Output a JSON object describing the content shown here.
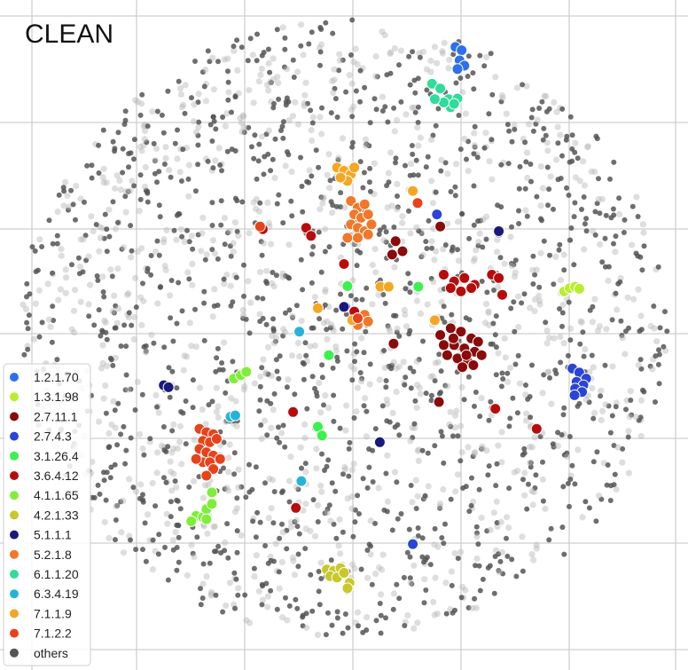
{
  "chart_data": {
    "type": "scatter",
    "title": "CLEAN",
    "xlabel": "",
    "ylabel": "",
    "grid": true,
    "legend_position": "bottom-left",
    "series": [
      {
        "name": "1.2.1.70",
        "color": "#2f6fe8",
        "points": [
          [
            0.662,
            0.07
          ],
          [
            0.671,
            0.075
          ],
          [
            0.668,
            0.09
          ],
          [
            0.675,
            0.098
          ],
          [
            0.665,
            0.103
          ]
        ]
      },
      {
        "name": "1.3.1.98",
        "color": "#b8ee2e",
        "points": [
          [
            0.82,
            0.435
          ],
          [
            0.828,
            0.43
          ],
          [
            0.836,
            0.428
          ],
          [
            0.842,
            0.431
          ]
        ]
      },
      {
        "name": "2.7.11.1",
        "color": "#8a0b0b",
        "points": [
          [
            0.64,
            0.5
          ],
          [
            0.655,
            0.49
          ],
          [
            0.67,
            0.495
          ],
          [
            0.685,
            0.505
          ],
          [
            0.695,
            0.51
          ],
          [
            0.66,
            0.515
          ],
          [
            0.675,
            0.52
          ],
          [
            0.69,
            0.525
          ],
          [
            0.65,
            0.53
          ],
          [
            0.665,
            0.535
          ],
          [
            0.68,
            0.54
          ],
          [
            0.672,
            0.548
          ],
          [
            0.688,
            0.545
          ],
          [
            0.659,
            0.505
          ],
          [
            0.678,
            0.53
          ],
          [
            0.645,
            0.515
          ],
          [
            0.7,
            0.53
          ],
          [
            0.575,
            0.36
          ],
          [
            0.585,
            0.375
          ],
          [
            0.57,
            0.38
          ],
          [
            0.64,
            0.338
          ],
          [
            0.572,
            0.513
          ],
          [
            0.638,
            0.6
          ]
        ]
      },
      {
        "name": "2.7.4.3",
        "color": "#2a44d8",
        "points": [
          [
            0.832,
            0.55
          ],
          [
            0.842,
            0.556
          ],
          [
            0.852,
            0.565
          ],
          [
            0.838,
            0.57
          ],
          [
            0.848,
            0.575
          ],
          [
            0.836,
            0.58
          ],
          [
            0.846,
            0.585
          ],
          [
            0.835,
            0.59
          ],
          [
            0.635,
            0.32
          ],
          [
            0.725,
            0.347
          ],
          [
            0.6,
            0.812
          ],
          [
            0.502,
            0.458
          ]
        ]
      },
      {
        "name": "3.1.26.4",
        "color": "#3af24e",
        "points": [
          [
            0.505,
            0.427
          ],
          [
            0.608,
            0.428
          ],
          [
            0.478,
            0.53
          ],
          [
            0.462,
            0.637
          ],
          [
            0.468,
            0.65
          ]
        ]
      },
      {
        "name": "3.6.4.12",
        "color": "#b80c0c",
        "points": [
          [
            0.645,
            0.41
          ],
          [
            0.66,
            0.42
          ],
          [
            0.675,
            0.415
          ],
          [
            0.69,
            0.425
          ],
          [
            0.655,
            0.43
          ],
          [
            0.67,
            0.435
          ],
          [
            0.685,
            0.43
          ],
          [
            0.715,
            0.41
          ],
          [
            0.725,
            0.415
          ],
          [
            0.73,
            0.44
          ],
          [
            0.445,
            0.34
          ],
          [
            0.452,
            0.352
          ],
          [
            0.5,
            0.394
          ],
          [
            0.515,
            0.465
          ],
          [
            0.52,
            0.475
          ],
          [
            0.426,
            0.615
          ],
          [
            0.72,
            0.61
          ],
          [
            0.78,
            0.64
          ],
          [
            0.43,
            0.758
          ],
          [
            0.382,
            0.342
          ]
        ]
      },
      {
        "name": "4.1.1.65",
        "color": "#7fee3a",
        "points": [
          [
            0.285,
            0.77
          ],
          [
            0.295,
            0.772
          ],
          [
            0.3,
            0.76
          ],
          [
            0.308,
            0.752
          ],
          [
            0.278,
            0.778
          ],
          [
            0.3,
            0.775
          ],
          [
            0.308,
            0.735
          ],
          [
            0.34,
            0.565
          ],
          [
            0.35,
            0.56
          ],
          [
            0.358,
            0.555
          ]
        ]
      },
      {
        "name": "4.2.1.33",
        "color": "#c8c82a",
        "points": [
          [
            0.475,
            0.85
          ],
          [
            0.485,
            0.852
          ],
          [
            0.495,
            0.848
          ],
          [
            0.48,
            0.86
          ],
          [
            0.49,
            0.862
          ],
          [
            0.5,
            0.855
          ],
          [
            0.508,
            0.87
          ],
          [
            0.505,
            0.878
          ]
        ]
      },
      {
        "name": "5.1.1.1",
        "color": "#1a1a7a",
        "points": [
          [
            0.238,
            0.575
          ],
          [
            0.245,
            0.578
          ],
          [
            0.725,
            0.345
          ],
          [
            0.552,
            0.66
          ],
          [
            0.5,
            0.458
          ]
        ]
      },
      {
        "name": "5.2.1.8",
        "color": "#f07828",
        "points": [
          [
            0.51,
            0.3
          ],
          [
            0.52,
            0.31
          ],
          [
            0.53,
            0.305
          ],
          [
            0.515,
            0.32
          ],
          [
            0.525,
            0.325
          ],
          [
            0.535,
            0.32
          ],
          [
            0.51,
            0.335
          ],
          [
            0.52,
            0.34
          ],
          [
            0.53,
            0.345
          ],
          [
            0.54,
            0.335
          ],
          [
            0.505,
            0.355
          ],
          [
            0.52,
            0.355
          ],
          [
            0.535,
            0.35
          ],
          [
            0.53,
            0.47
          ],
          [
            0.535,
            0.48
          ],
          [
            0.52,
            0.485
          ]
        ]
      },
      {
        "name": "6.1.1.20",
        "color": "#2fdc9a",
        "points": [
          [
            0.628,
            0.125
          ],
          [
            0.64,
            0.132
          ],
          [
            0.652,
            0.148
          ],
          [
            0.665,
            0.147
          ],
          [
            0.655,
            0.16
          ],
          [
            0.645,
            0.153
          ],
          [
            0.632,
            0.148
          ],
          [
            0.66,
            0.155
          ]
        ]
      },
      {
        "name": "6.3.4.19",
        "color": "#25b4d8",
        "points": [
          [
            0.435,
            0.495
          ],
          [
            0.335,
            0.622
          ],
          [
            0.342,
            0.62
          ],
          [
            0.438,
            0.718
          ]
        ]
      },
      {
        "name": "7.1.1.9",
        "color": "#f5a623",
        "points": [
          [
            0.49,
            0.25
          ],
          [
            0.5,
            0.255
          ],
          [
            0.51,
            0.26
          ],
          [
            0.505,
            0.27
          ],
          [
            0.495,
            0.265
          ],
          [
            0.515,
            0.25
          ],
          [
            0.6,
            0.285
          ],
          [
            0.553,
            0.428
          ],
          [
            0.565,
            0.428
          ],
          [
            0.462,
            0.46
          ],
          [
            0.512,
            0.478
          ],
          [
            0.632,
            0.478
          ]
        ]
      },
      {
        "name": "7.1.2.2",
        "color": "#e8421a",
        "points": [
          [
            0.29,
            0.64
          ],
          [
            0.3,
            0.645
          ],
          [
            0.31,
            0.648
          ],
          [
            0.295,
            0.658
          ],
          [
            0.305,
            0.66
          ],
          [
            0.315,
            0.655
          ],
          [
            0.29,
            0.67
          ],
          [
            0.3,
            0.675
          ],
          [
            0.31,
            0.68
          ],
          [
            0.32,
            0.685
          ],
          [
            0.295,
            0.69
          ],
          [
            0.305,
            0.69
          ],
          [
            0.31,
            0.7
          ],
          [
            0.3,
            0.71
          ],
          [
            0.285,
            0.685
          ],
          [
            0.378,
            0.338
          ],
          [
            0.607,
            0.303
          ],
          [
            0.52,
            0.475
          ]
        ]
      }
    ],
    "others": {
      "name": "others",
      "color": "#555555",
      "sampled_point_count": 2200,
      "seed": 7
    }
  }
}
